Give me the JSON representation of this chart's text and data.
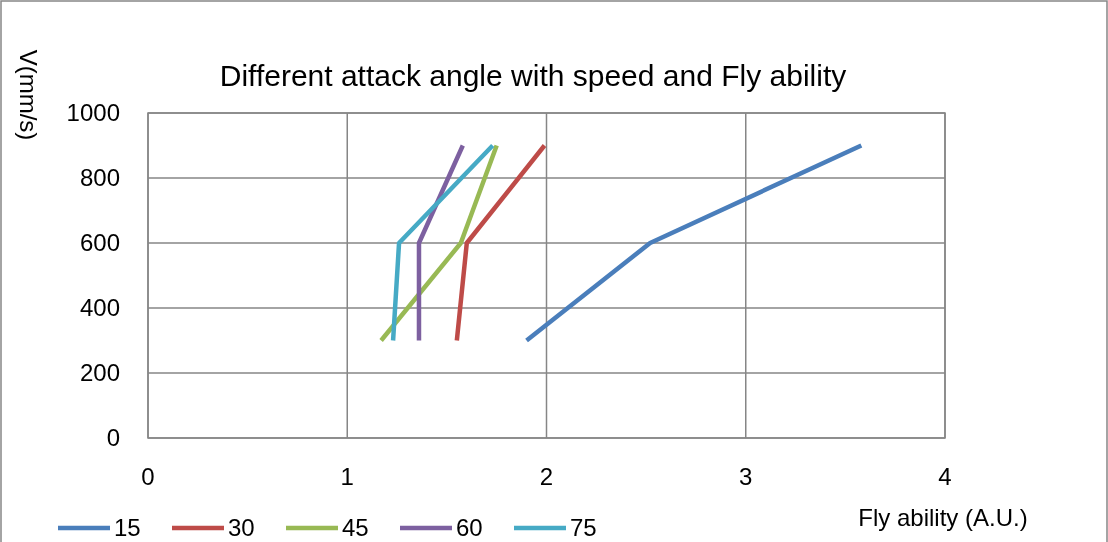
{
  "chart_data": {
    "type": "line",
    "title": "Different attack angle with speed and Fly ability",
    "xlabel": "Fly ability (A.U.)",
    "ylabel": "V(mm/s)",
    "xlim": [
      0,
      4
    ],
    "xticks": [
      0,
      1,
      2,
      3,
      4
    ],
    "ylim": [
      0,
      1000
    ],
    "yticks": [
      0,
      200,
      400,
      600,
      800,
      1000
    ],
    "grid": true,
    "legend": "bottom",
    "marker": "none",
    "line_style": "solid",
    "series": [
      {
        "name": "15",
        "color": "#4a7ebb",
        "x": [
          1.9,
          2.52,
          3.58
        ],
        "values": [
          300,
          600,
          900
        ]
      },
      {
        "name": "30",
        "color": "#be4b48",
        "x": [
          1.55,
          1.6,
          1.99
        ],
        "values": [
          300,
          600,
          900
        ]
      },
      {
        "name": "45",
        "color": "#98b954",
        "x": [
          1.17,
          1.57,
          1.75
        ],
        "values": [
          300,
          600,
          900
        ]
      },
      {
        "name": "60",
        "color": "#7d60a0",
        "x": [
          1.36,
          1.36,
          1.58
        ],
        "values": [
          300,
          600,
          900
        ]
      },
      {
        "name": "75",
        "color": "#46aac5",
        "x": [
          1.23,
          1.26,
          1.73
        ],
        "values": [
          300,
          600,
          900
        ]
      }
    ]
  }
}
